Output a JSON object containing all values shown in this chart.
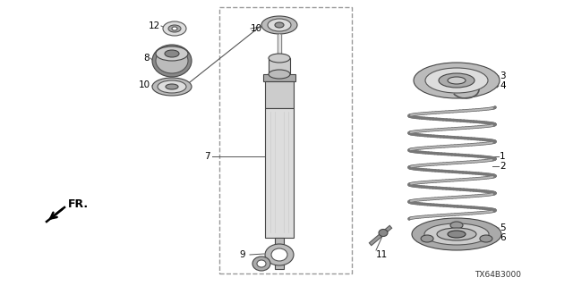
{
  "background_color": "#ffffff",
  "diagram_id": "TX64B3000",
  "fr_label": "FR.",
  "line_color": "#555555",
  "text_color": "#000000",
  "gray_light": "#cccccc",
  "gray_mid": "#aaaaaa",
  "gray_dark": "#666666",
  "border_color": "#888888"
}
